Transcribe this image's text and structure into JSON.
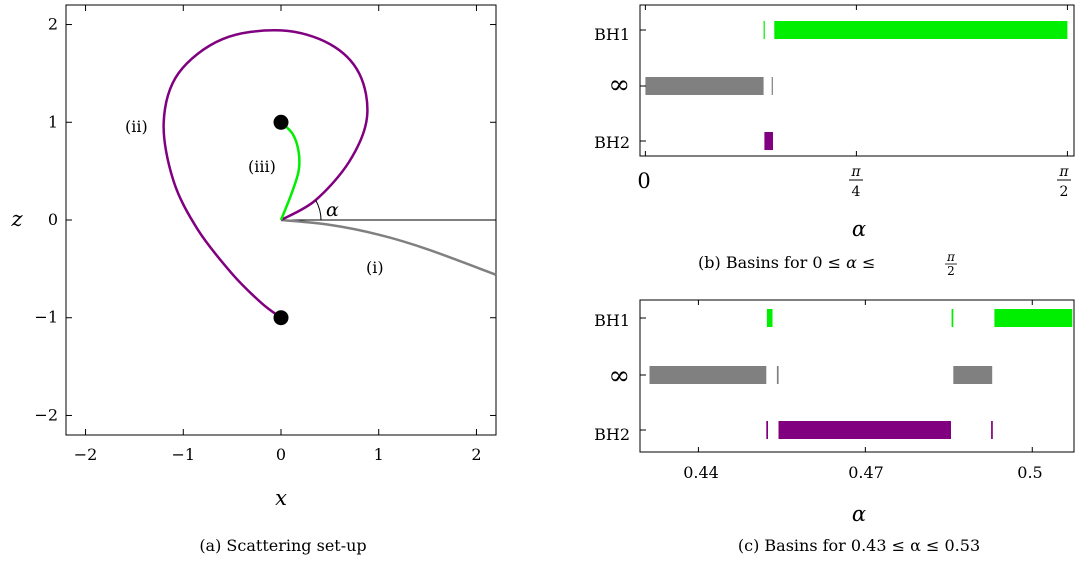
{
  "colors": {
    "green": "#00ee00",
    "gray": "#808080",
    "purple": "#800080",
    "black": "#000000"
  },
  "panel_a": {
    "caption": "(a) Scattering set-up",
    "xlabel": "x",
    "ylabel": "z",
    "xlim": [
      -2.2,
      2.2
    ],
    "ylim": [
      -2.2,
      2.2
    ],
    "xticks": [
      -2,
      -1,
      0,
      1,
      2
    ],
    "yticks": [
      -2,
      -1,
      0,
      1,
      2
    ],
    "xtick_labels": [
      "−2",
      "−1",
      "0",
      "1",
      "2"
    ],
    "ytick_labels": [
      "−2",
      "−1",
      "0",
      "1",
      "2"
    ],
    "angle_label": "α",
    "curve_labels": [
      "(i)",
      "(ii)",
      "(iii)"
    ]
  },
  "panel_b": {
    "caption": "(b) Basins for 0 ≤ α ≤ π/2",
    "xlabel": "α",
    "xtick_labels": [
      "0",
      "π/4",
      "π/2"
    ],
    "row_labels": [
      "BH1",
      "∞",
      "BH2"
    ]
  },
  "panel_c": {
    "caption": "(c) Basins for 0.43 ≤ α ≤ 0.53",
    "xlabel": "α",
    "xtick_labels": [
      "0.44",
      "0.47",
      "0.5"
    ],
    "row_labels": [
      "BH1",
      "∞",
      "BH2"
    ]
  },
  "chart_data": [
    {
      "type": "line",
      "panel": "a",
      "xlim": [
        -2.2,
        2.2
      ],
      "ylim": [
        -2.2,
        2.2
      ],
      "points": [
        {
          "x": 0,
          "y": 1
        },
        {
          "x": 0,
          "y": -1
        }
      ],
      "series": [
        {
          "label": "(i)",
          "color": "#808080",
          "x": [
            0,
            0.5,
            1.0,
            1.5,
            2.2
          ],
          "y": [
            0,
            -0.05,
            -0.15,
            -0.3,
            -0.56
          ]
        },
        {
          "label": "(ii)",
          "color": "#800080",
          "x": [
            0,
            0.35,
            0.7,
            0.88,
            0.8,
            0.5,
            0,
            -0.6,
            -1.05,
            -1.2,
            -1.1,
            -0.85,
            -0.5,
            -0.2,
            0
          ],
          "y": [
            0,
            0.2,
            0.6,
            1.05,
            1.5,
            1.8,
            1.94,
            1.85,
            1.5,
            1.0,
            0.4,
            -0.1,
            -0.55,
            -0.85,
            -1.0
          ]
        },
        {
          "label": "(iii)",
          "color": "#00ee00",
          "x": [
            0,
            0.1,
            0.18,
            0.18,
            0.12,
            0
          ],
          "y": [
            0,
            0.25,
            0.5,
            0.7,
            0.88,
            1.0
          ]
        }
      ],
      "reference_line": {
        "x": [
          0,
          2.2
        ],
        "y": [
          0,
          0
        ]
      }
    },
    {
      "type": "bar",
      "panel": "b",
      "xlim": [
        -0.02,
        1.5953
      ],
      "xticks": [
        0,
        0.7854,
        1.5708
      ],
      "rows": [
        "BH1",
        "∞",
        "BH2"
      ],
      "intervals": [
        {
          "row": "BH1",
          "start": 0.44,
          "end": 0.444,
          "color": "#00ee00"
        },
        {
          "row": "BH1",
          "start": 0.48,
          "end": 1.5708,
          "color": "#00ee00"
        },
        {
          "row": "∞",
          "start": 0.0,
          "end": 0.44,
          "color": "#808080"
        },
        {
          "row": "∞",
          "start": 0.47,
          "end": 0.474,
          "color": "#808080"
        },
        {
          "row": "BH2",
          "start": 0.443,
          "end": 0.475,
          "color": "#800080"
        }
      ]
    },
    {
      "type": "bar",
      "panel": "c",
      "xlim": [
        0.4295,
        0.5075
      ],
      "xticks": [
        0.44,
        0.47,
        0.5
      ],
      "rows": [
        "BH1",
        "∞",
        "BH2"
      ],
      "intervals": [
        {
          "row": "BH1",
          "start": 0.4523,
          "end": 0.4533,
          "color": "#00ee00"
        },
        {
          "row": "BH1",
          "start": 0.4855,
          "end": 0.4858,
          "color": "#00ee00"
        },
        {
          "row": "BH1",
          "start": 0.4932,
          "end": 0.5072,
          "color": "#00ee00"
        },
        {
          "row": "∞",
          "start": 0.4312,
          "end": 0.4522,
          "color": "#808080"
        },
        {
          "row": "∞",
          "start": 0.4541,
          "end": 0.4544,
          "color": "#808080"
        },
        {
          "row": "∞",
          "start": 0.4858,
          "end": 0.4928,
          "color": "#808080"
        },
        {
          "row": "BH2",
          "start": 0.4522,
          "end": 0.4525,
          "color": "#800080"
        },
        {
          "row": "BH2",
          "start": 0.4544,
          "end": 0.4854,
          "color": "#800080"
        },
        {
          "row": "BH2",
          "start": 0.4926,
          "end": 0.4929,
          "color": "#800080"
        }
      ]
    }
  ]
}
